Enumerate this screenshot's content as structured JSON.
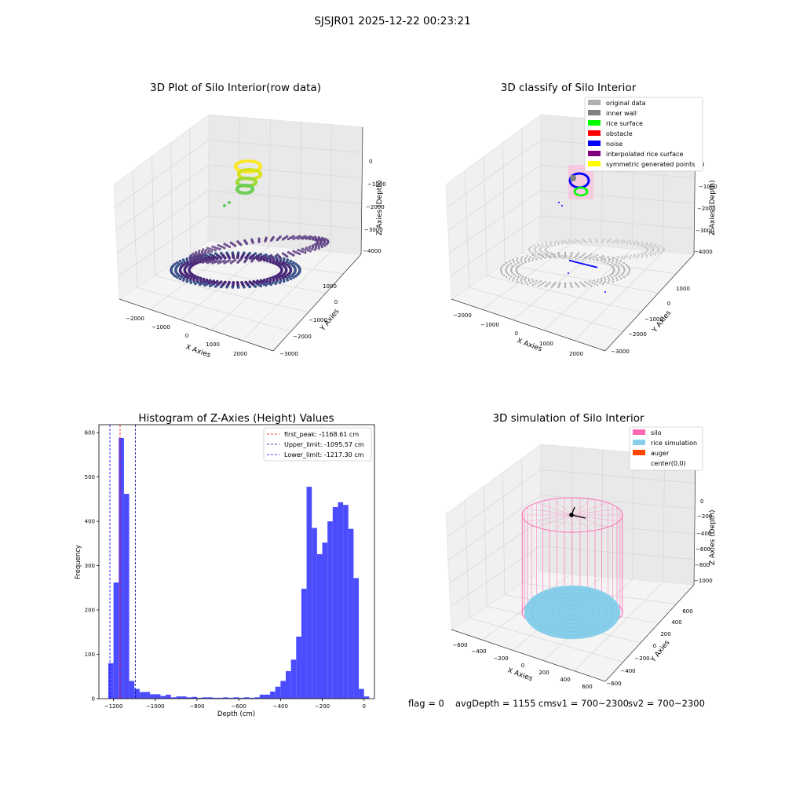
{
  "suptitle": "SJSJR01 2025-12-22 00:23:21",
  "colors": {
    "hist_bar": "#4c4cff",
    "first_peak": "#ff0000",
    "upper_limit": "#000080",
    "lower_limit": "#0000ff",
    "silo": "#ff69b4",
    "rice": "#87ceeb",
    "auger": "#ff4500",
    "grey": "#b0b0b0",
    "inner_wall": "#808080",
    "rice_surface": "#00ff00",
    "obstacle": "#ff0000",
    "noise": "#0000ff",
    "interp": "#800080",
    "sym": "#ffff00"
  },
  "panels": {
    "raw": {
      "title": "3D Plot of Silo Interior(row data)",
      "xlabel": "X Axies",
      "ylabel": "Y Axies",
      "zlabel": "Z Axies (Depth)",
      "xticks": [
        "-2000",
        "-1000",
        "0",
        "1000",
        "2000"
      ],
      "yticks": [
        "1000",
        "0",
        "-1000",
        "-2000",
        "-3000"
      ],
      "zticks": [
        "0",
        "-1000",
        "-2000",
        "-3000",
        "-4000"
      ]
    },
    "classify": {
      "title": "3D classify of Silo Interior",
      "xlabel": "X Axies",
      "ylabel": "Y Axies",
      "zlabel": "Z Axies (Depth)",
      "xticks": [
        "-2000",
        "-1000",
        "0",
        "1000",
        "2000"
      ],
      "yticks": [
        "1000",
        "0",
        "-1000",
        "-2000",
        "-3000"
      ],
      "zticks": [
        "0",
        "-1000",
        "-2000",
        "-3000",
        "-4000"
      ],
      "legend": [
        {
          "label": "original data",
          "color": "#b0b0b0"
        },
        {
          "label": "inner wall",
          "color": "#808080"
        },
        {
          "label": "rice surface",
          "color": "#00ff00"
        },
        {
          "label": "obstacle",
          "color": "#ff0000"
        },
        {
          "label": "noise",
          "color": "#0000ff"
        },
        {
          "label": "interpolated rice surface",
          "color": "#800080"
        },
        {
          "label": "symmetric generated points",
          "color": "#ffff00"
        }
      ]
    },
    "simulation": {
      "title": "3D simulation of Silo Interior",
      "xlabel": "X Axies",
      "ylabel": "Y Axies",
      "zlabel": "Z Axies (Depth)",
      "xticks": [
        "-600",
        "-400",
        "-200",
        "0",
        "200",
        "400",
        "600"
      ],
      "yticks": [
        "600",
        "400",
        "200",
        "0",
        "-200",
        "-400",
        "-600"
      ],
      "zticks": [
        "0",
        "-200",
        "-400",
        "-600",
        "-800",
        "-1000"
      ],
      "legend": [
        {
          "label": "silo",
          "color": "#ff69b4"
        },
        {
          "label": "rice simulation",
          "color": "#87ceeb"
        },
        {
          "label": "auger",
          "color": "#ff4500"
        },
        {
          "label": "center(0,0)",
          "color": ""
        }
      ]
    }
  },
  "status": {
    "flag": "flag = 0",
    "avg_depth": "avgDepth = 1155 cm",
    "sv1": "sv1 = 700~2300",
    "sv2": "sv2 = 700~2300"
  },
  "chart_data": {
    "type": "bar",
    "title": "Histogram of Z-Axies (Height) Values",
    "xlabel": "Depth (cm)",
    "ylabel": "Frequency",
    "xlim": [
      -1270,
      50
    ],
    "ylim": [
      0,
      618
    ],
    "xticks": [
      -1200,
      -1000,
      -800,
      -600,
      -400,
      -200,
      0
    ],
    "yticks": [
      0,
      100,
      200,
      300,
      400,
      500,
      600
    ],
    "bin_width": 25,
    "bins": [
      {
        "x0": -1225,
        "count": 80
      },
      {
        "x0": -1200,
        "count": 262
      },
      {
        "x0": -1175,
        "count": 588
      },
      {
        "x0": -1150,
        "count": 462
      },
      {
        "x0": -1125,
        "count": 40
      },
      {
        "x0": -1100,
        "count": 22
      },
      {
        "x0": -1075,
        "count": 15
      },
      {
        "x0": -1050,
        "count": 15
      },
      {
        "x0": -1025,
        "count": 10
      },
      {
        "x0": -1000,
        "count": 10
      },
      {
        "x0": -975,
        "count": 6
      },
      {
        "x0": -950,
        "count": 9
      },
      {
        "x0": -925,
        "count": 3
      },
      {
        "x0": -900,
        "count": 5
      },
      {
        "x0": -875,
        "count": 5
      },
      {
        "x0": -850,
        "count": 3
      },
      {
        "x0": -825,
        "count": 4
      },
      {
        "x0": -800,
        "count": 2
      },
      {
        "x0": -775,
        "count": 3
      },
      {
        "x0": -750,
        "count": 3
      },
      {
        "x0": -725,
        "count": 2
      },
      {
        "x0": -700,
        "count": 2
      },
      {
        "x0": -675,
        "count": 3
      },
      {
        "x0": -650,
        "count": 2
      },
      {
        "x0": -625,
        "count": 3
      },
      {
        "x0": -600,
        "count": 2
      },
      {
        "x0": -575,
        "count": 3
      },
      {
        "x0": -550,
        "count": 2
      },
      {
        "x0": -525,
        "count": 3
      },
      {
        "x0": -500,
        "count": 9
      },
      {
        "x0": -475,
        "count": 9
      },
      {
        "x0": -450,
        "count": 16
      },
      {
        "x0": -425,
        "count": 27
      },
      {
        "x0": -400,
        "count": 40
      },
      {
        "x0": -375,
        "count": 62
      },
      {
        "x0": -350,
        "count": 88
      },
      {
        "x0": -325,
        "count": 140
      },
      {
        "x0": -300,
        "count": 248
      },
      {
        "x0": -275,
        "count": 478
      },
      {
        "x0": -250,
        "count": 385
      },
      {
        "x0": -225,
        "count": 326
      },
      {
        "x0": -200,
        "count": 352
      },
      {
        "x0": -175,
        "count": 400
      },
      {
        "x0": -150,
        "count": 432
      },
      {
        "x0": -125,
        "count": 443
      },
      {
        "x0": -100,
        "count": 437
      },
      {
        "x0": -75,
        "count": 383
      },
      {
        "x0": -50,
        "count": 272
      },
      {
        "x0": -25,
        "count": 22
      },
      {
        "x0": 0,
        "count": 5
      }
    ],
    "vlines": [
      {
        "name": "first_peak: -1168.61 cm",
        "x": -1168.61,
        "color": "#ff0000"
      },
      {
        "name": "Upper_limit: -1095.57 cm",
        "x": -1095.57,
        "color": "#000080"
      },
      {
        "name": "Lower_limit: -1217.30 cm",
        "x": -1217.3,
        "color": "#0000ff"
      }
    ],
    "legend_position": "upper right",
    "grid": false
  }
}
